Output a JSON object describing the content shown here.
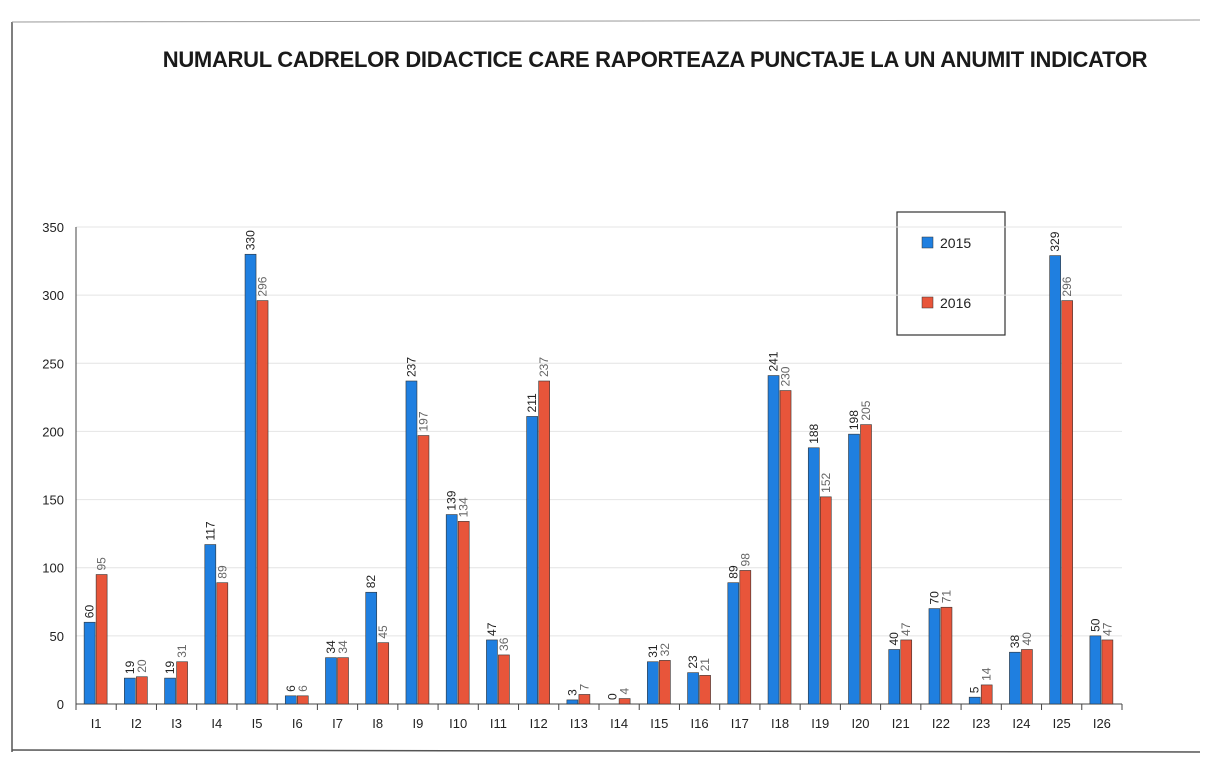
{
  "chart_data": {
    "type": "bar",
    "title": "NUMARUL CADRELOR DIDACTICE CARE RAPORTEAZA PUNCTAJE LA UN ANUMIT INDICATOR",
    "categories": [
      "I1",
      "I2",
      "I3",
      "I4",
      "I5",
      "I6",
      "I7",
      "I8",
      "I9",
      "I10",
      "I11",
      "I12",
      "I13",
      "I14",
      "I15",
      "I16",
      "I17",
      "I18",
      "I19",
      "I20",
      "I21",
      "I22",
      "I23",
      "I24",
      "I25",
      "I26"
    ],
    "series": [
      {
        "name": "2015",
        "color": "#1f7fe0",
        "values": [
          60,
          19,
          19,
          117,
          330,
          6,
          34,
          82,
          237,
          139,
          47,
          211,
          3,
          0,
          31,
          23,
          89,
          241,
          188,
          198,
          40,
          70,
          5,
          38,
          329,
          50
        ]
      },
      {
        "name": "2016",
        "color": "#e8553a",
        "values": [
          95,
          20,
          31,
          89,
          296,
          6,
          34,
          45,
          197,
          134,
          36,
          237,
          7,
          4,
          32,
          21,
          98,
          230,
          152,
          205,
          47,
          71,
          14,
          40,
          296,
          47
        ]
      }
    ],
    "ylim": [
      0,
      350
    ],
    "yticks": [
      0,
      50,
      100,
      150,
      200,
      250,
      300,
      350
    ],
    "grid": true,
    "legend": "upper right"
  }
}
